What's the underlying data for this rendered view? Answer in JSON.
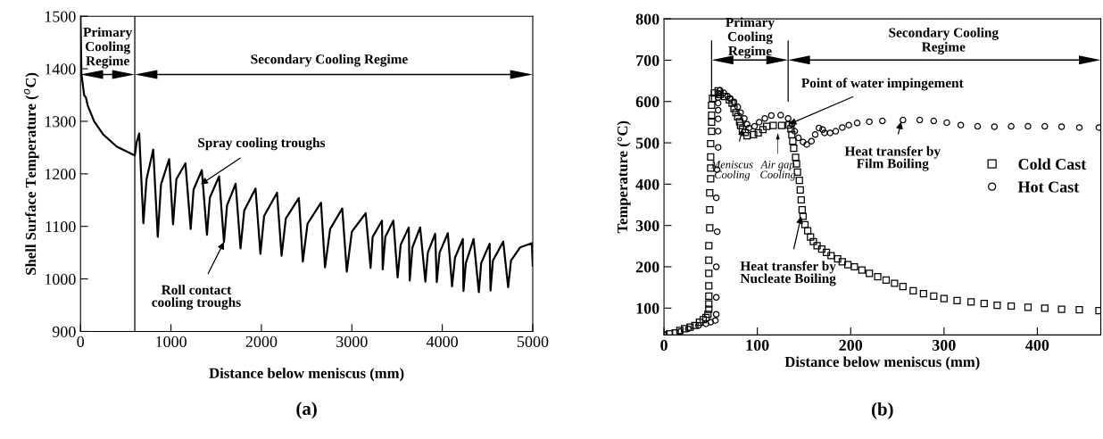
{
  "chart_data": [
    {
      "type": "line",
      "xlabel": "Distance below meniscus (mm)",
      "ylabel": "Shell Surface Temperature ($^{o}$C)",
      "xlim": [
        0,
        5000
      ],
      "ylim": [
        900,
        1500
      ],
      "xticks": [
        0,
        1000,
        2000,
        3000,
        4000,
        5000
      ],
      "yticks": [
        900,
        1000,
        1100,
        1200,
        1300,
        1400,
        1500
      ],
      "grid": false,
      "legend": false,
      "marker": "none",
      "line_style": "solid",
      "ref_lines": [
        {
          "axis": "x",
          "value": 600,
          "label": null
        }
      ],
      "annotations": [
        {
          "text": "Spray cooling troughs",
          "x": 1330,
          "y": 1180
        },
        {
          "text": "Roll contact\ncooling troughs",
          "x": 1586,
          "y": 1070
        },
        "Primary\nCooling\nRegime",
        "Secondary Cooling Regime",
        "(a)"
      ],
      "series": [
        {
          "color": "#000000",
          "x": [
            0,
            10,
            25,
            40,
            60,
            80,
            150,
            250,
            400,
            600,
            620,
            649,
            695,
            730,
            804,
            854,
            890,
            980,
            1023,
            1060,
            1160,
            1218,
            1250,
            1341,
            1398,
            1430,
            1532,
            1586,
            1620,
            1715,
            1769,
            1810,
            1935,
            1989,
            2030,
            2173,
            2223,
            2270,
            2414,
            2458,
            2510,
            2659,
            2703,
            2760,
            2894,
            2944,
            3000,
            3153,
            3207,
            3230,
            3333,
            3341,
            3370,
            3459,
            3506,
            3540,
            3629,
            3640,
            3670,
            3755,
            3813,
            3840,
            3921,
            3939,
            3970,
            4061,
            4108,
            4140,
            4227,
            4234,
            4260,
            4346,
            4404,
            4430,
            4523,
            4533,
            4560,
            4674,
            4728,
            4760,
            4860,
            4990,
            5000
          ],
          "values": [
            1500,
            1390,
            1370,
            1350,
            1345,
            1330,
            1300,
            1275,
            1252,
            1235,
            1260,
            1277,
            1106,
            1190,
            1246,
            1080,
            1180,
            1228,
            1104,
            1190,
            1220,
            1095,
            1170,
            1207,
            1084,
            1155,
            1195,
            1070,
            1140,
            1181,
            1058,
            1130,
            1172,
            1048,
            1120,
            1164,
            1044,
            1115,
            1154,
            1033,
            1105,
            1145,
            1022,
            1095,
            1134,
            1014,
            1090,
            1125,
            1021,
            1080,
            1111,
            1018,
            1080,
            1111,
            1003,
            1065,
            1098,
            997,
            1060,
            1098,
            995,
            1050,
            1086,
            994,
            1050,
            1087,
            986,
            1040,
            1076,
            977,
            1030,
            1076,
            975,
            1030,
            1067,
            978,
            1035,
            1071,
            984,
            1035,
            1060,
            1068,
            1025
          ]
        }
      ]
    },
    {
      "type": "scatter",
      "xlabel": "Distance below meniscus (mm)",
      "ylabel": "Temperature (°C)",
      "xlim": [
        0,
        468
      ],
      "ylim": [
        35,
        800
      ],
      "xticks": [
        0,
        100,
        200,
        300,
        400
      ],
      "yticks": [
        100,
        200,
        300,
        400,
        500,
        600,
        700,
        800
      ],
      "grid": false,
      "legend": "right",
      "ref_lines": [
        {
          "axis": "x",
          "value": 51,
          "label": null
        },
        {
          "axis": "x",
          "value": 133,
          "label": null
        }
      ],
      "annotations": [
        {
          "text": "Point of water impingement",
          "x": 134,
          "y": 545
        },
        {
          "text": "Meniscus\nCooling",
          "x": 84,
          "y": 533
        },
        "Air gap\nCooling",
        {
          "text": "Heat transfer by\nFilm Boiling",
          "x": 254,
          "y": 551
        },
        {
          "text": "Heat transfer by\nNucleate Boiling",
          "x": 147,
          "y": 322
        },
        "Primary\nCooling\nRegime",
        "Secondary Cooling\nRegime",
        "(b)"
      ],
      "series": [
        {
          "name": "Cold Cast",
          "color": "#000000",
          "marker": "square",
          "x": [
            0,
            6,
            12,
            17,
            22,
            28,
            33,
            38,
            42,
            45,
            47,
            48,
            48,
            48,
            48,
            48,
            48,
            48,
            49,
            49,
            49,
            50,
            50,
            50,
            50,
            51,
            51,
            51,
            51,
            52,
            54,
            58,
            60,
            65,
            70,
            73,
            75,
            77,
            79,
            81,
            82,
            84,
            87,
            89,
            96,
            101,
            106,
            110,
            117,
            126,
            134,
            136,
            137,
            138,
            139,
            141,
            142,
            143,
            145,
            146,
            147,
            148,
            149,
            151,
            154,
            157,
            160,
            164,
            169,
            174,
            179,
            186,
            191,
            197,
            204,
            212,
            220,
            229,
            238,
            247,
            256,
            267,
            278,
            289,
            300,
            314,
            329,
            343,
            357,
            372,
            390,
            408,
            426,
            445,
            466
          ],
          "values": [
            35,
            38,
            40,
            46,
            50,
            54,
            58,
            66,
            72,
            77,
            85,
            97,
            110,
            129,
            154,
            184,
            216,
            251,
            294,
            338,
            379,
            413,
            439,
            466,
            498,
            528,
            550,
            567,
            591,
            608,
            621,
            626,
            617,
            612,
            604,
            596,
            583,
            573,
            563,
            551,
            542,
            533,
            525,
            517,
            520,
            524,
            532,
            540,
            542,
            542,
            543,
            534,
            520,
            504,
            487,
            465,
            449,
            429,
            409,
            386,
            362,
            338,
            322,
            302,
            287,
            272,
            261,
            251,
            243,
            235,
            227,
            219,
            212,
            205,
            200,
            192,
            184,
            176,
            168,
            160,
            152,
            142,
            135,
            129,
            123,
            118,
            115,
            111,
            107,
            105,
            102,
            100,
            97,
            96,
            94
          ]
        },
        {
          "name": "Hot Cast",
          "color": "#000000",
          "marker": "circle",
          "x": [
            0,
            17,
            26,
            37,
            45,
            50,
            55,
            56,
            56,
            56,
            57,
            56,
            57,
            58,
            58,
            58,
            58,
            58,
            58,
            58,
            60,
            64,
            68,
            71,
            75,
            79,
            82,
            86,
            89,
            91,
            97,
            102,
            108,
            115,
            125,
            133,
            137,
            140,
            144,
            149,
            153,
            158,
            162,
            166,
            170,
            172,
            178,
            184,
            191,
            198,
            207,
            220,
            234,
            256,
            274,
            289,
            303,
            318,
            336,
            354,
            372,
            390,
            408,
            426,
            445,
            466
          ],
          "values": [
            35,
            43,
            50,
            58,
            62,
            66,
            70,
            85,
            126,
            200,
            285,
            367,
            435,
            489,
            528,
            558,
            579,
            596,
            610,
            620,
            627,
            621,
            613,
            607,
            599,
            587,
            573,
            559,
            545,
            536,
            540,
            550,
            559,
            566,
            567,
            559,
            545,
            528,
            512,
            502,
            496,
            504,
            520,
            536,
            532,
            524,
            524,
            528,
            537,
            543,
            548,
            551,
            553,
            555,
            555,
            553,
            549,
            543,
            540,
            539,
            540,
            540,
            540,
            539,
            537,
            537
          ]
        }
      ]
    }
  ]
}
